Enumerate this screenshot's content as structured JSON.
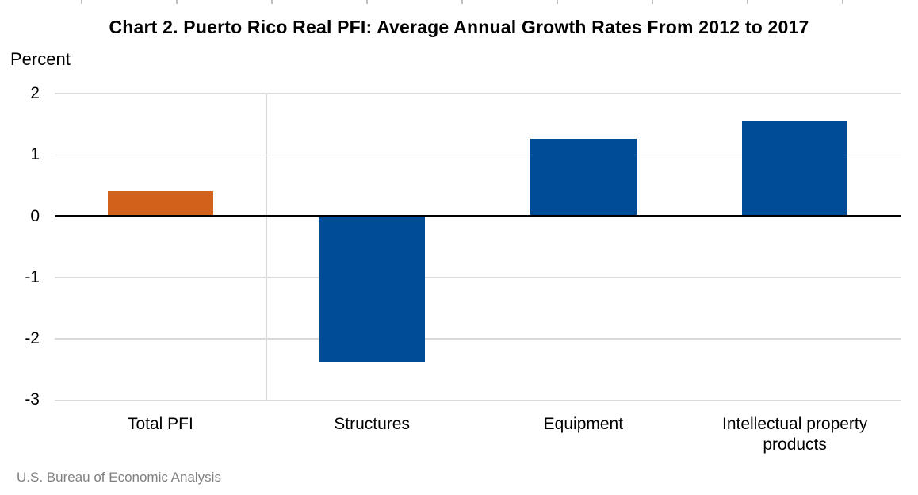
{
  "page": {
    "title": "Chart 2. Puerto Rico Real PFI: Average Annual Growth Rates From 2012 to 2017",
    "y_axis_unit_label": "Percent",
    "source": "U.S. Bureau of Economic Analysis"
  },
  "colors": {
    "accent_orange": "#D2611B",
    "accent_blue": "#004C96",
    "gridline": "#D9D9D9",
    "zero_line": "#000000",
    "top_tick_mark": "#BFBFBF",
    "source_text": "#808080"
  },
  "chart_data": {
    "type": "bar",
    "title": "Chart 2. Puerto Rico Real PFI: Average Annual Growth Rates From 2012 to 2017",
    "ylabel": "Percent",
    "xlabel": "",
    "categories": [
      "Total PFI",
      "Structures",
      "Equipment",
      "Intellectual property products"
    ],
    "values": [
      0.41,
      -2.38,
      1.26,
      1.56
    ],
    "bar_colors": [
      "#D2611B",
      "#004C96",
      "#004C96",
      "#004C96"
    ],
    "yticks": [
      2,
      1,
      0,
      -1,
      -2,
      -3
    ],
    "ylim": [
      -3,
      2
    ],
    "grid": "horizontal",
    "zero_line_value": 0,
    "legend": "none",
    "layout": {
      "vertical_gridline_at_category_boundary": 1,
      "top_edge_tick_marks": {
        "count": 9,
        "first_x": 103,
        "spacing": 120
      }
    },
    "source": "U.S. Bureau of Economic Analysis"
  }
}
